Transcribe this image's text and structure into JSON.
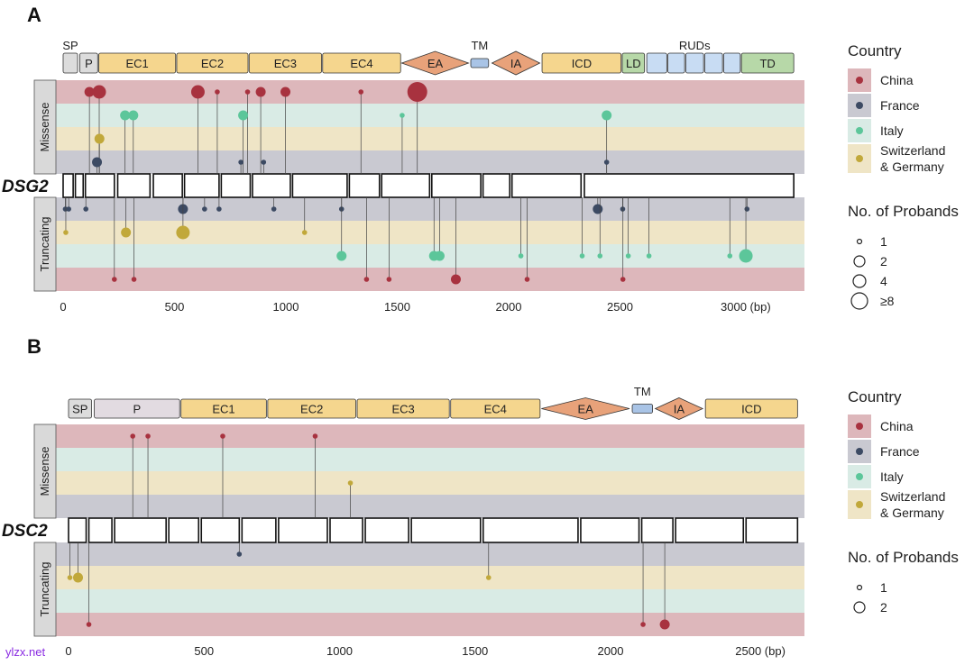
{
  "colors": {
    "China": "#a8323f",
    "France": "#3c4a63",
    "Italy": "#5cc69a",
    "Switzerland": "#c1a83a",
    "band_china": "#ddb7bb",
    "band_france": "#c9c9d1",
    "band_italy": "#d9ebe5",
    "band_swiss": "#efe5c6",
    "dom_grey": "#dcdcdc",
    "dom_lightpink": "#e2dbe1",
    "dom_yellow": "#f5d68e",
    "dom_salmon": "#e8a27a",
    "dom_tm": "#a9c4e6",
    "dom_rud": "#c8dcf3",
    "dom_green": "#b7d8a8"
  },
  "legend": {
    "country_title": "Country",
    "countries": [
      {
        "label": "China",
        "key": "China"
      },
      {
        "label": "France",
        "key": "France"
      },
      {
        "label": "Italy",
        "key": "Italy"
      },
      {
        "label": "Switzerland\n& Germany",
        "key": "Switzerland"
      }
    ],
    "probands_title": "No. of Probands"
  },
  "watermark": "ylzx.net",
  "chart_data": [
    {
      "type": "scatter",
      "panel": "A",
      "gene": "DSG2",
      "xunit": "(bp)",
      "xlim": [
        0,
        3350
      ],
      "xticks": [
        0,
        500,
        1000,
        1500,
        2000,
        2500,
        3000
      ],
      "xtick_labels": [
        "0",
        "500",
        "1000",
        "1500",
        "2000",
        "2500",
        "3000 (bp)"
      ],
      "strip_labels": {
        "top": "Missense",
        "bottom": "Truncating"
      },
      "size_legend": [
        {
          "label": "1",
          "n": 1
        },
        {
          "label": "2",
          "n": 2
        },
        {
          "label": "4",
          "n": 4
        },
        {
          "label": "≥8",
          "n": 8
        }
      ],
      "domains": [
        {
          "label": "SP",
          "start": 0,
          "end": 65,
          "shape": "rect",
          "color": "dom_grey",
          "label_pos": "above"
        },
        {
          "label": "P",
          "start": 75,
          "end": 155,
          "shape": "rect",
          "color": "dom_grey",
          "label_pos": "inside"
        },
        {
          "label": "EC1",
          "start": 160,
          "end": 505,
          "shape": "rect",
          "color": "dom_yellow",
          "label_pos": "inside"
        },
        {
          "label": "EC2",
          "start": 510,
          "end": 830,
          "shape": "rect",
          "color": "dom_yellow",
          "label_pos": "inside"
        },
        {
          "label": "EC3",
          "start": 835,
          "end": 1160,
          "shape": "rect",
          "color": "dom_yellow",
          "label_pos": "inside"
        },
        {
          "label": "EC4",
          "start": 1165,
          "end": 1515,
          "shape": "rect",
          "color": "dom_yellow",
          "label_pos": "inside"
        },
        {
          "label": "EA",
          "start": 1520,
          "end": 1820,
          "shape": "diamond",
          "color": "dom_salmon",
          "label_pos": "inside"
        },
        {
          "label": "TM",
          "start": 1830,
          "end": 1910,
          "shape": "small",
          "color": "dom_tm",
          "label_pos": "above"
        },
        {
          "label": "IA",
          "start": 1925,
          "end": 2140,
          "shape": "diamond",
          "color": "dom_salmon",
          "label_pos": "inside"
        },
        {
          "label": "ICD",
          "start": 2150,
          "end": 2505,
          "shape": "rect",
          "color": "dom_yellow",
          "label_pos": "inside"
        },
        {
          "label": "LD",
          "start": 2510,
          "end": 2610,
          "shape": "rect",
          "color": "dom_green",
          "label_pos": "inside"
        },
        {
          "label": "",
          "start": 2620,
          "end": 2710,
          "shape": "rect",
          "color": "dom_rud",
          "label_pos": "none"
        },
        {
          "label": "",
          "start": 2715,
          "end": 2790,
          "shape": "rect",
          "color": "dom_rud",
          "label_pos": "none"
        },
        {
          "label": "",
          "start": 2795,
          "end": 2875,
          "shape": "rect",
          "color": "dom_rud",
          "label_pos": "none"
        },
        {
          "label": "",
          "start": 2880,
          "end": 2960,
          "shape": "rect",
          "color": "dom_rud",
          "label_pos": "none"
        },
        {
          "label": "",
          "start": 2965,
          "end": 3040,
          "shape": "rect",
          "color": "dom_rud",
          "label_pos": "none"
        },
        {
          "label": "TD",
          "start": 3045,
          "end": 3280,
          "shape": "rect",
          "color": "dom_green",
          "label_pos": "inside"
        }
      ],
      "rud_label": {
        "label": "RUDs",
        "center": 2835
      },
      "exons": [
        [
          0,
          45
        ],
        [
          55,
          90
        ],
        [
          100,
          230
        ],
        [
          245,
          390
        ],
        [
          405,
          535
        ],
        [
          545,
          700
        ],
        [
          710,
          840
        ],
        [
          850,
          1020
        ],
        [
          1030,
          1275
        ],
        [
          1285,
          1420
        ],
        [
          1430,
          1645
        ],
        [
          1655,
          1875
        ],
        [
          1885,
          2005
        ],
        [
          2015,
          2325
        ],
        [
          2340,
          3280
        ]
      ],
      "missense": [
        {
          "x": 118,
          "country": "China",
          "n": 2
        },
        {
          "x": 162,
          "country": "China",
          "n": 4
        },
        {
          "x": 605,
          "country": "China",
          "n": 4
        },
        {
          "x": 692,
          "country": "China",
          "n": 1
        },
        {
          "x": 828,
          "country": "China",
          "n": 1
        },
        {
          "x": 887,
          "country": "China",
          "n": 2
        },
        {
          "x": 998,
          "country": "China",
          "n": 2
        },
        {
          "x": 1337,
          "country": "China",
          "n": 1
        },
        {
          "x": 1590,
          "country": "China",
          "n": 8
        },
        {
          "x": 278,
          "country": "Italy",
          "n": 2
        },
        {
          "x": 315,
          "country": "Italy",
          "n": 2
        },
        {
          "x": 808,
          "country": "Italy",
          "n": 2
        },
        {
          "x": 1522,
          "country": "Italy",
          "n": 1
        },
        {
          "x": 2440,
          "country": "Italy",
          "n": 2
        },
        {
          "x": 163,
          "country": "Switzerland",
          "n": 2
        },
        {
          "x": 152,
          "country": "France",
          "n": 2
        },
        {
          "x": 798,
          "country": "France",
          "n": 1
        },
        {
          "x": 900,
          "country": "France",
          "n": 1
        },
        {
          "x": 2440,
          "country": "France",
          "n": 1
        }
      ],
      "truncating": [
        {
          "x": 10,
          "country": "France",
          "n": 1
        },
        {
          "x": 25,
          "country": "France",
          "n": 1
        },
        {
          "x": 102,
          "country": "France",
          "n": 1
        },
        {
          "x": 538,
          "country": "France",
          "n": 2
        },
        {
          "x": 635,
          "country": "France",
          "n": 1
        },
        {
          "x": 700,
          "country": "France",
          "n": 1
        },
        {
          "x": 946,
          "country": "France",
          "n": 1
        },
        {
          "x": 1250,
          "country": "France",
          "n": 1
        },
        {
          "x": 2400,
          "country": "France",
          "n": 2
        },
        {
          "x": 2512,
          "country": "France",
          "n": 1
        },
        {
          "x": 3070,
          "country": "France",
          "n": 1
        },
        {
          "x": 12,
          "country": "Switzerland",
          "n": 1
        },
        {
          "x": 282,
          "country": "Switzerland",
          "n": 2
        },
        {
          "x": 538,
          "country": "Switzerland",
          "n": 4
        },
        {
          "x": 1084,
          "country": "Switzerland",
          "n": 1
        },
        {
          "x": 1250,
          "country": "Italy",
          "n": 2
        },
        {
          "x": 1665,
          "country": "Italy",
          "n": 2
        },
        {
          "x": 1690,
          "country": "Italy",
          "n": 2
        },
        {
          "x": 2055,
          "country": "Italy",
          "n": 1
        },
        {
          "x": 2330,
          "country": "Italy",
          "n": 1
        },
        {
          "x": 2410,
          "country": "Italy",
          "n": 1
        },
        {
          "x": 2537,
          "country": "Italy",
          "n": 1
        },
        {
          "x": 2630,
          "country": "Italy",
          "n": 1
        },
        {
          "x": 2993,
          "country": "Italy",
          "n": 1
        },
        {
          "x": 3065,
          "country": "Italy",
          "n": 4
        },
        {
          "x": 230,
          "country": "China",
          "n": 1
        },
        {
          "x": 318,
          "country": "China",
          "n": 1
        },
        {
          "x": 1362,
          "country": "China",
          "n": 1
        },
        {
          "x": 1463,
          "country": "China",
          "n": 1
        },
        {
          "x": 1763,
          "country": "China",
          "n": 2
        },
        {
          "x": 2083,
          "country": "China",
          "n": 1
        },
        {
          "x": 2513,
          "country": "China",
          "n": 1
        }
      ]
    },
    {
      "type": "scatter",
      "panel": "B",
      "gene": "DSC2",
      "xunit": "(bp)",
      "xlim": [
        0,
        2700
      ],
      "xticks": [
        0,
        500,
        1000,
        1500,
        2000,
        2500
      ],
      "xtick_labels": [
        "0",
        "500",
        "1000",
        "1500",
        "2000",
        "2500 (bp)"
      ],
      "strip_labels": {
        "top": "Missense",
        "bottom": "Truncating"
      },
      "size_legend": [
        {
          "label": "1",
          "n": 1
        },
        {
          "label": "2",
          "n": 2
        }
      ],
      "domains": [
        {
          "label": "SP",
          "start": 0,
          "end": 85,
          "shape": "rect",
          "color": "dom_grey",
          "label_pos": "inside"
        },
        {
          "label": "P",
          "start": 95,
          "end": 410,
          "shape": "rect",
          "color": "dom_lightpink",
          "label_pos": "inside"
        },
        {
          "label": "EC1",
          "start": 415,
          "end": 730,
          "shape": "rect",
          "color": "dom_yellow",
          "label_pos": "inside"
        },
        {
          "label": "EC2",
          "start": 735,
          "end": 1060,
          "shape": "rect",
          "color": "dom_yellow",
          "label_pos": "inside"
        },
        {
          "label": "EC3",
          "start": 1065,
          "end": 1405,
          "shape": "rect",
          "color": "dom_yellow",
          "label_pos": "inside"
        },
        {
          "label": "EC4",
          "start": 1410,
          "end": 1740,
          "shape": "rect",
          "color": "dom_yellow",
          "label_pos": "inside"
        },
        {
          "label": "EA",
          "start": 1745,
          "end": 2070,
          "shape": "diamond",
          "color": "dom_salmon",
          "label_pos": "inside"
        },
        {
          "label": "TM",
          "start": 2080,
          "end": 2155,
          "shape": "small",
          "color": "dom_tm",
          "label_pos": "above"
        },
        {
          "label": "IA",
          "start": 2165,
          "end": 2340,
          "shape": "diamond",
          "color": "dom_salmon",
          "label_pos": "inside"
        },
        {
          "label": "ICD",
          "start": 2350,
          "end": 2690,
          "shape": "rect",
          "color": "dom_yellow",
          "label_pos": "inside"
        }
      ],
      "exons": [
        [
          0,
          65
        ],
        [
          75,
          160
        ],
        [
          170,
          360
        ],
        [
          370,
          480
        ],
        [
          490,
          630
        ],
        [
          640,
          765
        ],
        [
          775,
          955
        ],
        [
          965,
          1085
        ],
        [
          1095,
          1255
        ],
        [
          1265,
          1520
        ],
        [
          1530,
          1880
        ],
        [
          1890,
          2105
        ],
        [
          2115,
          2230
        ],
        [
          2240,
          2490
        ],
        [
          2500,
          2690
        ]
      ],
      "missense": [
        {
          "x": 237,
          "country": "China",
          "n": 1
        },
        {
          "x": 293,
          "country": "China",
          "n": 1
        },
        {
          "x": 569,
          "country": "China",
          "n": 1
        },
        {
          "x": 910,
          "country": "China",
          "n": 1
        },
        {
          "x": 1040,
          "country": "Switzerland",
          "n": 1
        }
      ],
      "truncating": [
        {
          "x": 630,
          "country": "France",
          "n": 1
        },
        {
          "x": 5,
          "country": "Switzerland",
          "n": 1
        },
        {
          "x": 35,
          "country": "Switzerland",
          "n": 2
        },
        {
          "x": 1550,
          "country": "Switzerland",
          "n": 1
        },
        {
          "x": 75,
          "country": "China",
          "n": 1
        },
        {
          "x": 2120,
          "country": "China",
          "n": 1
        },
        {
          "x": 2200,
          "country": "China",
          "n": 2
        }
      ]
    }
  ]
}
